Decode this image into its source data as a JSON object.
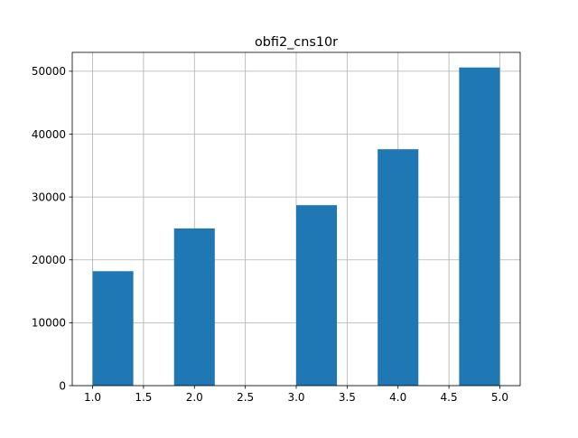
{
  "chart_data": {
    "type": "bar",
    "title": "obfi2_cns10r",
    "xlabel": "",
    "ylabel": "",
    "xlim": [
      0.8,
      5.2
    ],
    "ylim": [
      0,
      53000
    ],
    "grid": true,
    "bar_color": "#1f77b4",
    "bins": [
      {
        "x0": 1.0,
        "x1": 1.4,
        "value": 18200
      },
      {
        "x0": 1.4,
        "x1": 1.8,
        "value": 0
      },
      {
        "x0": 1.8,
        "x1": 2.2,
        "value": 25000
      },
      {
        "x0": 2.2,
        "x1": 2.6,
        "value": 0
      },
      {
        "x0": 2.6,
        "x1": 3.0,
        "value": 0
      },
      {
        "x0": 3.0,
        "x1": 3.4,
        "value": 28700
      },
      {
        "x0": 3.4,
        "x1": 3.8,
        "value": 0
      },
      {
        "x0": 3.8,
        "x1": 4.2,
        "value": 37600
      },
      {
        "x0": 4.2,
        "x1": 4.6,
        "value": 0
      },
      {
        "x0": 4.6,
        "x1": 5.0,
        "value": 50600
      }
    ],
    "x_ticks": [
      {
        "value": 1.0,
        "label": "1.0"
      },
      {
        "value": 1.5,
        "label": "1.5"
      },
      {
        "value": 2.0,
        "label": "2.0"
      },
      {
        "value": 2.5,
        "label": "2.5"
      },
      {
        "value": 3.0,
        "label": "3.0"
      },
      {
        "value": 3.5,
        "label": "3.5"
      },
      {
        "value": 4.0,
        "label": "4.0"
      },
      {
        "value": 4.5,
        "label": "4.5"
      },
      {
        "value": 5.0,
        "label": "5.0"
      }
    ],
    "y_ticks": [
      {
        "value": 0,
        "label": "0"
      },
      {
        "value": 10000,
        "label": "10000"
      },
      {
        "value": 20000,
        "label": "20000"
      },
      {
        "value": 30000,
        "label": "30000"
      },
      {
        "value": 40000,
        "label": "40000"
      },
      {
        "value": 50000,
        "label": "50000"
      }
    ]
  }
}
